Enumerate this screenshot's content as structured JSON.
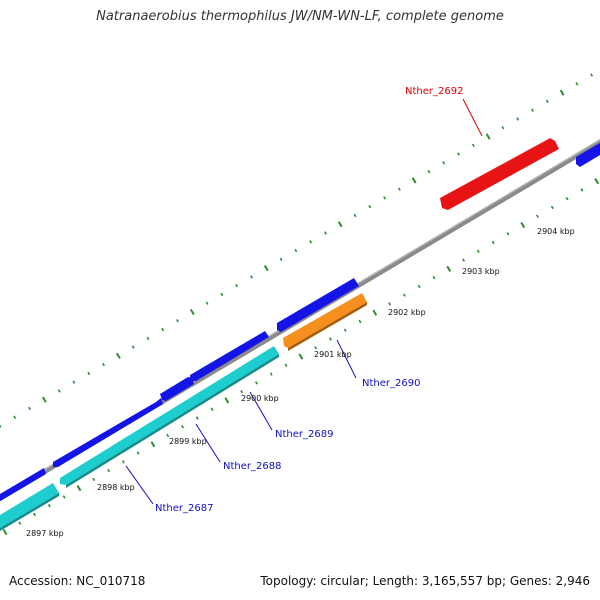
{
  "title": "Natranaerobius thermophilus JW/NM-WN-LF, complete genome",
  "footer": {
    "accession": "Accession: NC_010718",
    "summary": "Topology: circular; Length: 3,165,557 bp; Genes: 2,946"
  },
  "colors": {
    "backbone": "#8a8a8a",
    "forward_cds": "#1414e6",
    "reverse_cds": "#1ecdcd",
    "highlight_red": "#e61414",
    "highlight_orange": "#f5901e",
    "tick": "#2e8b2e",
    "label_blue": "#1010c0",
    "label_red": "#e00000"
  },
  "scale_labels": [
    "2897 kbp",
    "2898 kbp",
    "2899 kbp",
    "2900 kbp",
    "2901 kbp",
    "2902 kbp",
    "2903 kbp",
    "2904 kbp"
  ],
  "gene_labels": [
    {
      "text": "Nther_2687",
      "color": "#1010c0"
    },
    {
      "text": "Nther_2688",
      "color": "#1010c0"
    },
    {
      "text": "Nther_2689",
      "color": "#1010c0"
    },
    {
      "text": "Nther_2690",
      "color": "#1010c0"
    },
    {
      "text": "Nther_2692",
      "color": "#e00000"
    }
  ]
}
